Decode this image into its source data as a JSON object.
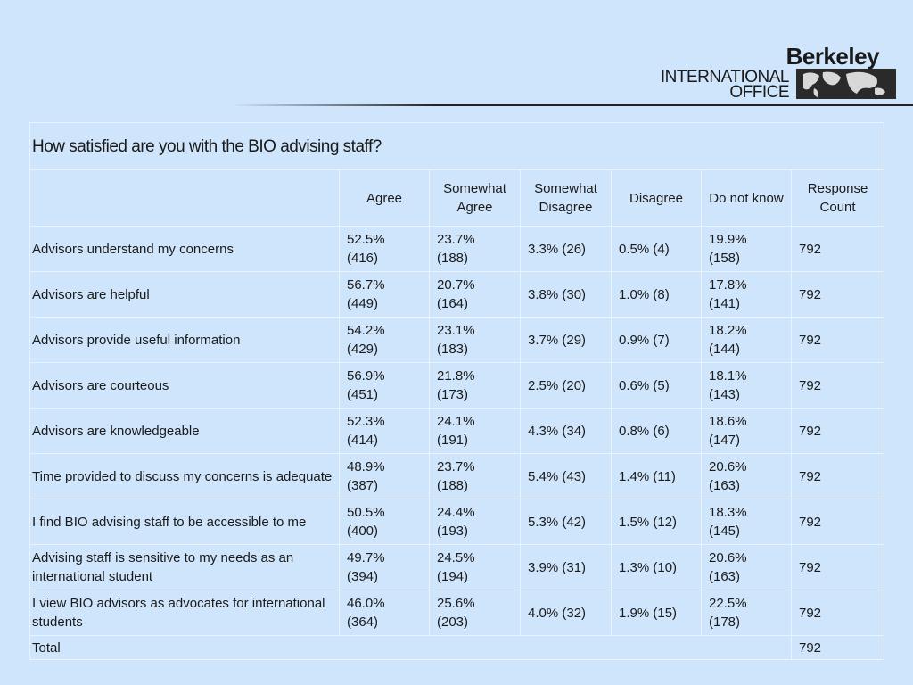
{
  "header": {
    "brand": "Berkeley",
    "line1": "INTERNATIONAL",
    "line2": "OFFICE"
  },
  "table": {
    "title": "How satisfied are you with the BIO advising staff?",
    "columns": [
      "Agree",
      "Somewhat Agree",
      "Somewhat Disagree",
      "Disagree",
      "Do not know",
      "Response Count"
    ],
    "rows": [
      [
        "Advisors understand my concerns",
        "52.5% (416)",
        "23.7% (188)",
        "3.3% (26)",
        "0.5% (4)",
        "19.9% (158)",
        "792"
      ],
      [
        "Advisors are helpful",
        "56.7% (449)",
        "20.7% (164)",
        "3.8% (30)",
        "1.0% (8)",
        "17.8% (141)",
        "792"
      ],
      [
        "Advisors provide useful information",
        "54.2% (429)",
        "23.1% (183)",
        "3.7% (29)",
        "0.9% (7)",
        "18.2% (144)",
        "792"
      ],
      [
        "Advisors are courteous",
        "56.9% (451)",
        "21.8% (173)",
        "2.5% (20)",
        "0.6% (5)",
        "18.1% (143)",
        "792"
      ],
      [
        "Advisors are knowledgeable",
        "52.3% (414)",
        "24.1% (191)",
        "4.3% (34)",
        "0.8% (6)",
        "18.6% (147)",
        "792"
      ],
      [
        "Time provided to discuss my concerns is adequate",
        "48.9% (387)",
        "23.7% (188)",
        "5.4% (43)",
        "1.4% (11)",
        "20.6% (163)",
        "792"
      ],
      [
        "I find BIO advising staff to be accessible to me",
        "50.5% (400)",
        "24.4% (193)",
        "5.3% (42)",
        "1.5% (12)",
        "18.3% (145)",
        "792"
      ],
      [
        "Advising staff is sensitive to my needs as an international student",
        "49.7% (394)",
        "24.5% (194)",
        "3.9% (31)",
        "1.3% (10)",
        "20.6% (163)",
        "792"
      ],
      [
        "I view BIO advisors as advocates for international students",
        "46.0% (364)",
        "25.6% (203)",
        "4.0% (32)",
        "1.9% (15)",
        "22.5% (178)",
        "792"
      ]
    ],
    "total": {
      "label": "Total",
      "count": "792"
    }
  }
}
